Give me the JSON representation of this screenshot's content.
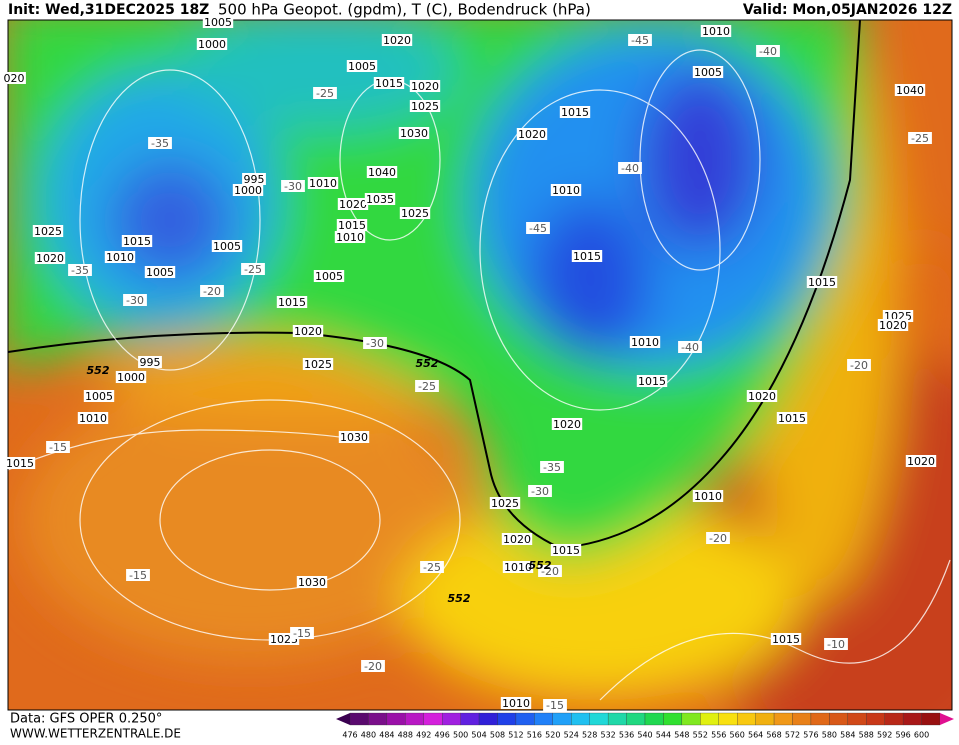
{
  "header": {
    "init": "Init: Wed,31DEC2025 18Z",
    "title": "500 hPa Geopot. (gpdm), T (C), Bodendruck (hPa)",
    "valid": "Valid: Mon,05JAN2026 12Z"
  },
  "footer": {
    "data": "Data: GFS OPER 0.250°",
    "site": "WWW.WETTERZENTRALE.DE"
  },
  "colorbar": {
    "values": [
      476,
      480,
      484,
      488,
      492,
      496,
      500,
      504,
      508,
      512,
      516,
      520,
      524,
      528,
      532,
      536,
      540,
      544,
      548,
      552,
      556,
      560,
      564,
      568,
      572,
      576,
      580,
      584,
      588,
      592,
      596,
      600
    ],
    "colors": [
      "#5a0a6e",
      "#7a0f8a",
      "#9a10a8",
      "#b818c4",
      "#d420dc",
      "#a020e0",
      "#6020e0",
      "#3020d8",
      "#2040e8",
      "#2060f0",
      "#2080f8",
      "#20a0f8",
      "#20c0f0",
      "#20d8d8",
      "#20d8a8",
      "#20d880",
      "#20d850",
      "#30e030",
      "#80e820",
      "#e0f010",
      "#f8e010",
      "#f8c810",
      "#f0b010",
      "#f09818",
      "#e88018",
      "#e06818",
      "#d85818",
      "#d04818",
      "#c83818",
      "#b82818",
      "#a81818",
      "#981010"
    ]
  },
  "isobar_labels": [
    "1005",
    "1000",
    "1020",
    "1005",
    "1015",
    "1020",
    "1025",
    "1030",
    "1040",
    "1010",
    "995",
    "1000",
    "1020",
    "1035",
    "1025",
    "1015",
    "1010",
    "1005",
    "1015",
    "1025",
    "1010",
    "1020",
    "1005",
    "1005",
    "1015",
    "1020",
    "995",
    "1000",
    "1025",
    "1005",
    "1010",
    "1015",
    "1030",
    "1030",
    "1025",
    "1025",
    "1020",
    "1015",
    "1010",
    "1020",
    "1015",
    "1010",
    "1015",
    "1010",
    "1015",
    "1020",
    "1005",
    "1010",
    "1040",
    "1015",
    "1025",
    "1020",
    "1020",
    "1015",
    "1020",
    "1010",
    "1015",
    "1010",
    "020"
  ],
  "temperature_labels": [
    "-25",
    "-35",
    "-30",
    "-25",
    "-20",
    "-35",
    "-30",
    "-30",
    "-25",
    "-15",
    "-25",
    "-15",
    "-15",
    "-20",
    "-35",
    "-30",
    "-20",
    "-20",
    "-45",
    "-40",
    "-40",
    "-45",
    "-40",
    "-25",
    "-20",
    "-10",
    "-15"
  ],
  "contour_labels": [
    "552",
    "552",
    "552",
    "552"
  ]
}
